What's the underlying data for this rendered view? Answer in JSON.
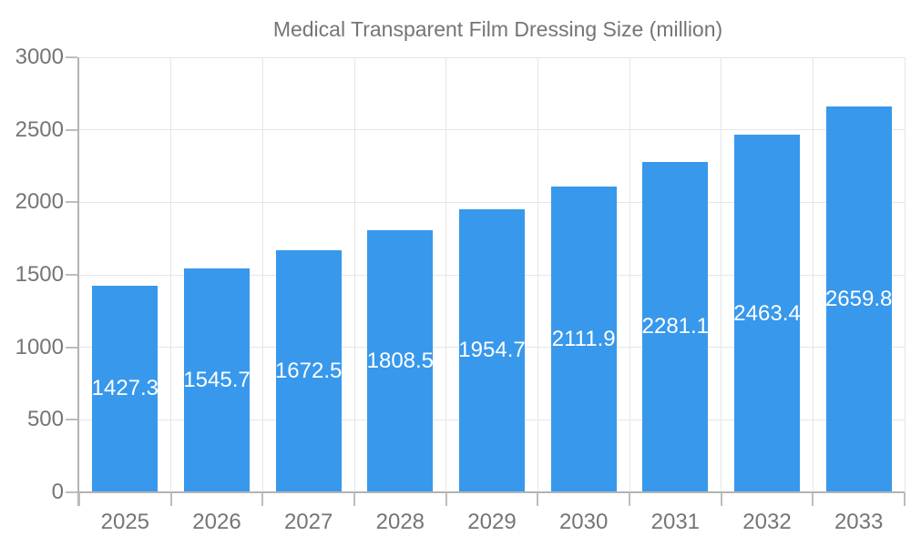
{
  "chart_data": {
    "type": "bar",
    "title": "Medical Transparent Film Dressing Size (million)",
    "categories": [
      "2025",
      "2026",
      "2027",
      "2028",
      "2029",
      "2030",
      "2031",
      "2032",
      "2033"
    ],
    "values": [
      1427.3,
      1545.7,
      1672.5,
      1808.5,
      1954.7,
      2111.9,
      2281.1,
      2463.4,
      2659.8
    ],
    "value_labels": [
      "1427.3",
      "1545.7",
      "1672.5",
      "1808.5",
      "1954.7",
      "2111.9",
      "2281.1",
      "2463.4",
      "2659.8"
    ],
    "xlabel": "",
    "ylabel": "",
    "ylim": [
      0,
      3000
    ],
    "yticks": [
      0,
      500,
      1000,
      1500,
      2000,
      2500,
      3000
    ],
    "ytick_labels": [
      "0",
      "500",
      "1000",
      "1500",
      "2000",
      "2500",
      "3000"
    ],
    "grid": true,
    "legend_position": "top-center",
    "bar_color": "#3798ec",
    "value_label_color": "#ffffff",
    "axis_text_color": "#757575",
    "gridline_color": "#e6e6e6",
    "axis_line_color": "#b3b3b3"
  }
}
